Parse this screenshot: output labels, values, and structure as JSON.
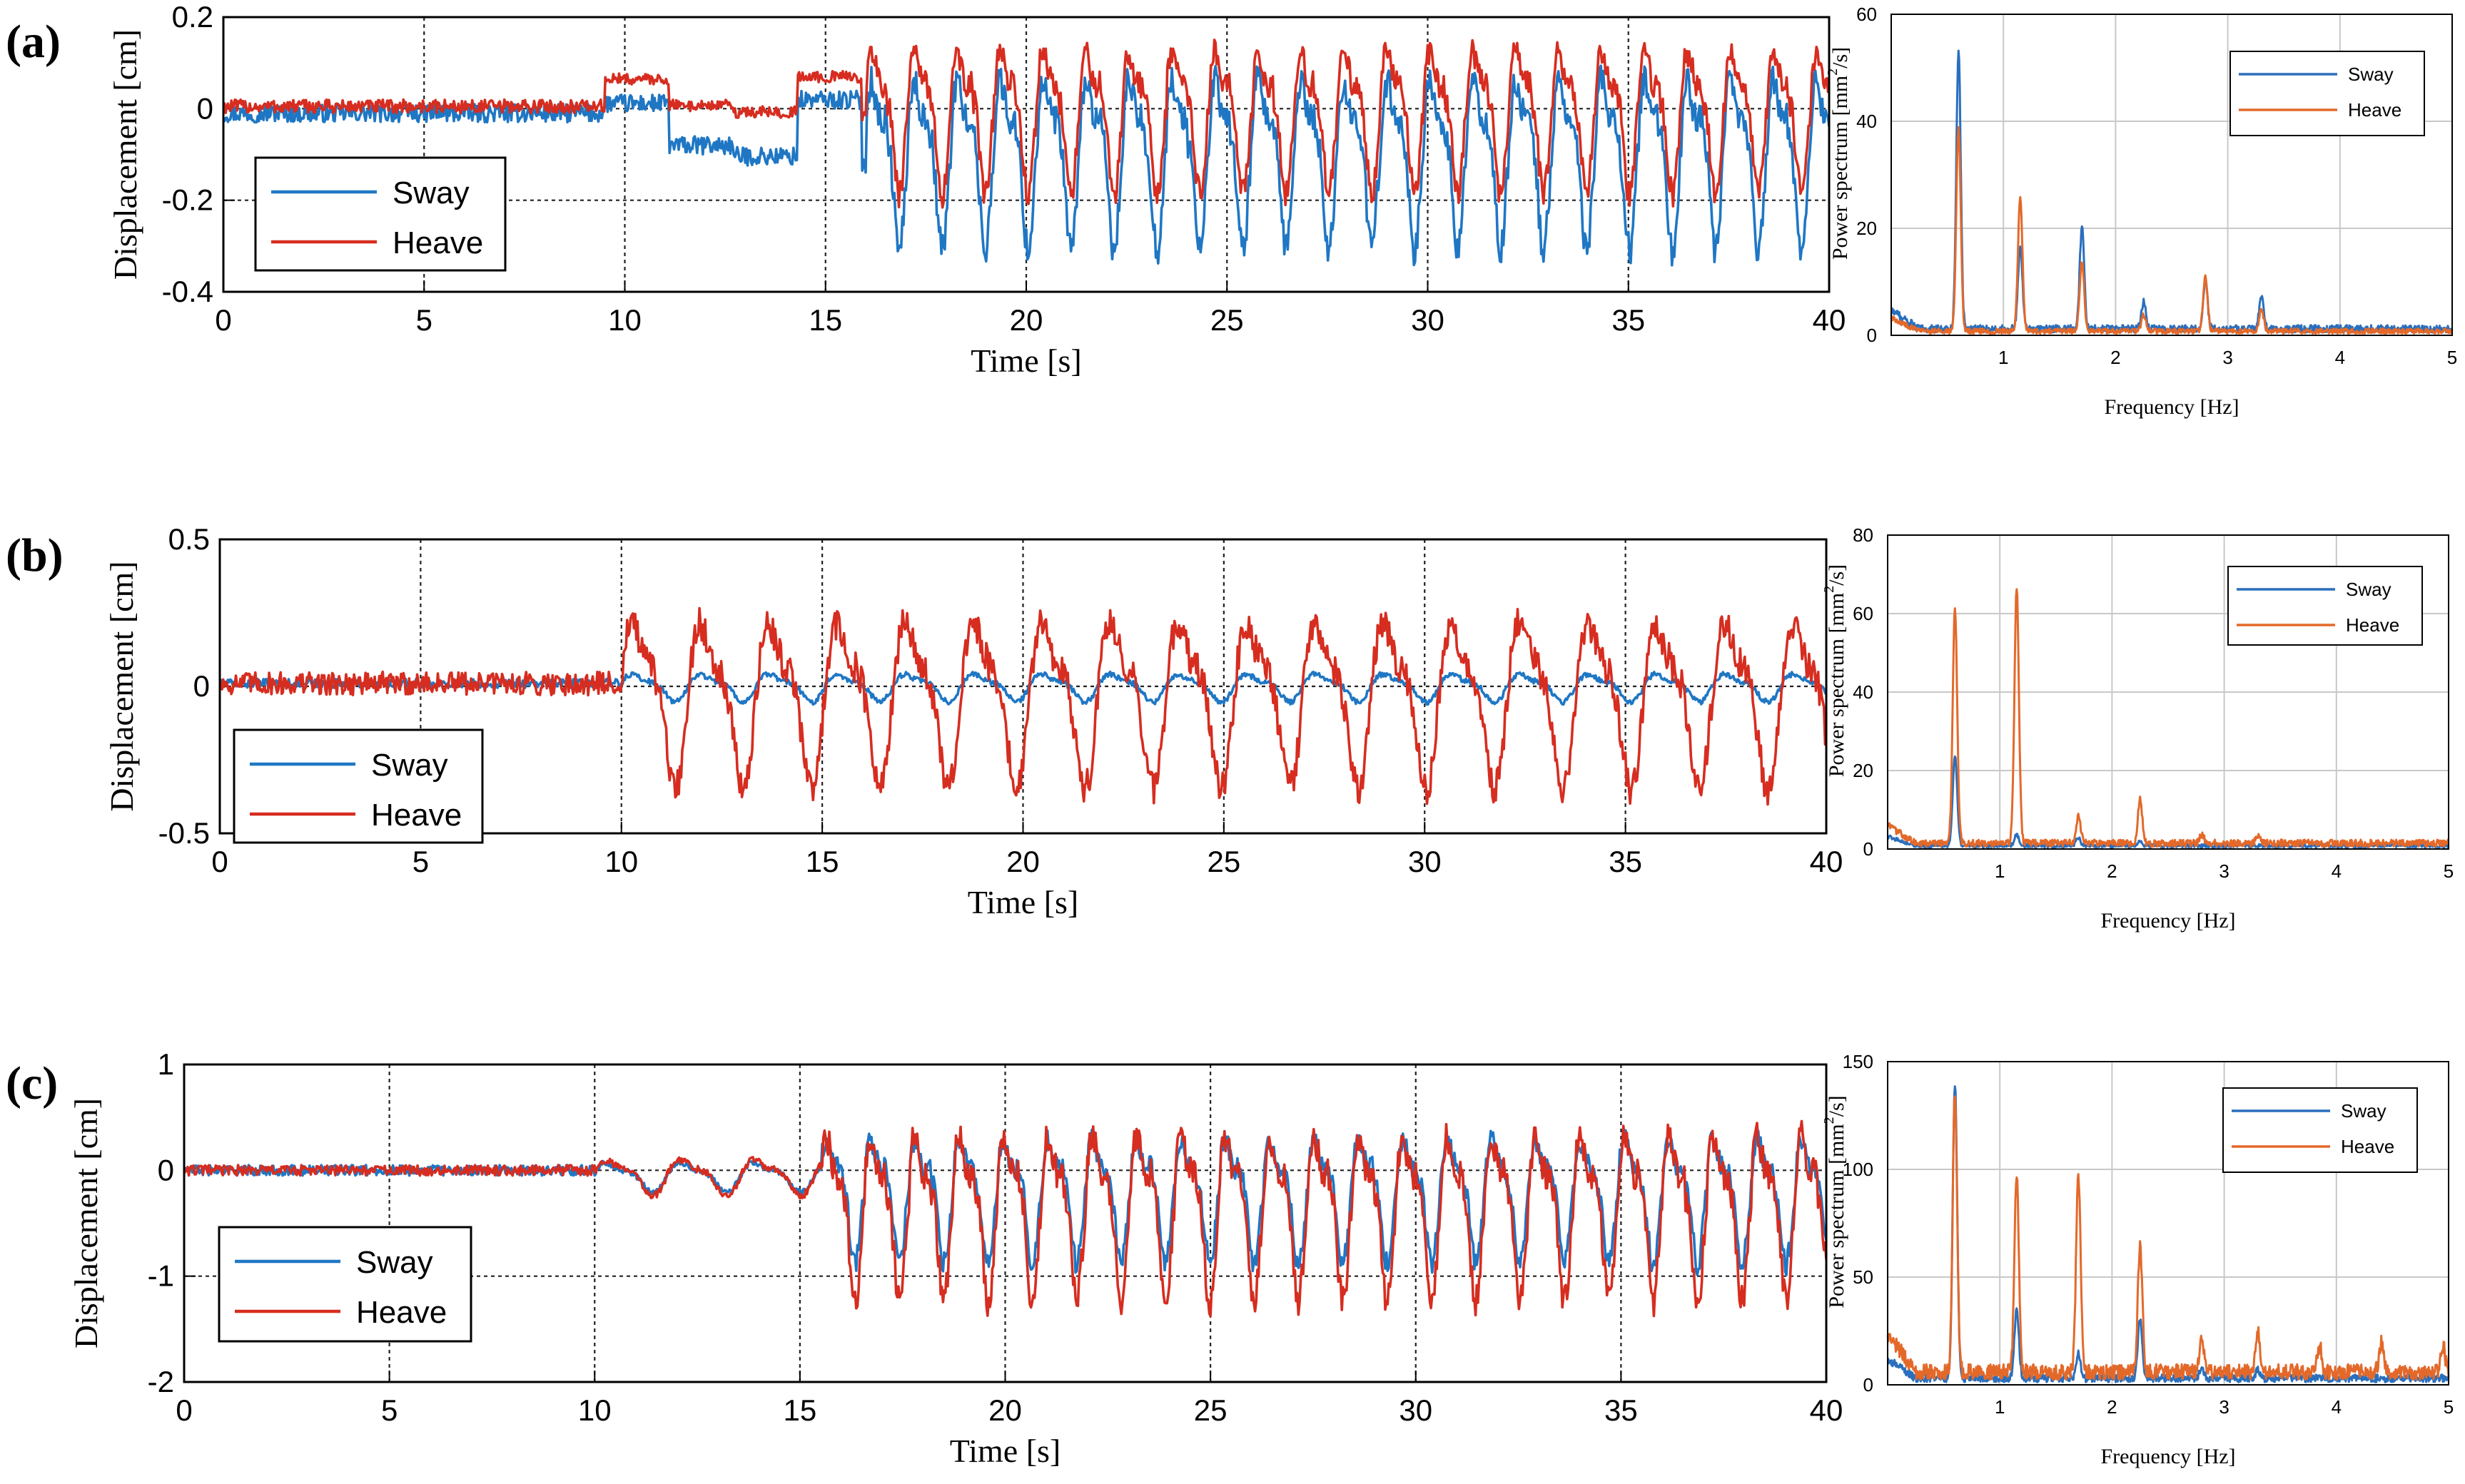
{
  "colors": {
    "sway": "#1f77c4",
    "heave": "#d62d20",
    "sway_spectrum": "#2a6fbd",
    "heave_spectrum": "#e3692a"
  },
  "panels": [
    {
      "label": "(a)",
      "time_chart": {
        "type": "line",
        "xlabel": "Time [s]",
        "ylabel": "Displacement [cm]",
        "xlim": [
          0,
          40
        ],
        "ylim": [
          -0.4,
          0.2
        ],
        "xticks": [
          "0",
          "5",
          "10",
          "15",
          "20",
          "25",
          "30",
          "35",
          "40"
        ],
        "yticks": [
          "-0.4",
          "-0.2",
          "0",
          "0.2"
        ],
        "legend": [
          "Sway",
          "Heave"
        ],
        "series": [
          {
            "name": "Sway",
            "segments": [
              {
                "t0": 0,
                "t1": 9.5,
                "kind": "flat",
                "level": -0.01,
                "amp": 0.02
              },
              {
                "t0": 9.5,
                "t1": 16,
                "kind": "steps",
                "level": -0.06,
                "amp": 0.08,
                "period": 1.6
              },
              {
                "t0": 16,
                "t1": 40,
                "kind": "osc",
                "level": -0.11,
                "amp": 0.19,
                "period": 1.07,
                "sharp": 1
              }
            ]
          },
          {
            "name": "Heave",
            "segments": [
              {
                "t0": 0,
                "t1": 9.5,
                "kind": "flat",
                "level": 0.005,
                "amp": 0.015
              },
              {
                "t0": 9.5,
                "t1": 16,
                "kind": "steps",
                "level": 0.02,
                "amp": 0.05,
                "period": 1.6
              },
              {
                "t0": 16,
                "t1": 40,
                "kind": "osc",
                "level": -0.02,
                "amp": 0.16,
                "period": 1.07,
                "sharp": 1
              }
            ]
          }
        ]
      },
      "spectrum_chart": {
        "type": "line",
        "xlabel": "Frequency [Hz]",
        "ylabel": "Power spectrum [mm",
        "ylabel_sup": "2",
        "ylabel_tail": "/s]",
        "xlim": [
          0,
          5
        ],
        "ylim": [
          0,
          60
        ],
        "xticks": [
          "1",
          "2",
          "3",
          "4",
          "5"
        ],
        "yticks": [
          "0",
          "20",
          "40",
          "60"
        ],
        "legend": [
          "Sway",
          "Heave"
        ],
        "series": [
          {
            "name": "Sway",
            "peaks": [
              [
                0.6,
                52
              ],
              [
                1.15,
                15
              ],
              [
                1.7,
                19
              ],
              [
                2.25,
                5
              ],
              [
                2.8,
                9
              ],
              [
                3.3,
                6
              ]
            ],
            "floor": 1.2
          },
          {
            "name": "Heave",
            "peaks": [
              [
                0.6,
                38
              ],
              [
                1.15,
                25
              ],
              [
                1.7,
                13
              ],
              [
                2.25,
                3
              ],
              [
                2.8,
                10
              ],
              [
                3.3,
                4
              ]
            ],
            "floor": 0.8
          }
        ]
      }
    },
    {
      "label": "(b)",
      "time_chart": {
        "type": "line",
        "xlabel": "Time [s]",
        "ylabel": "Displacement [cm]",
        "xlim": [
          0,
          40
        ],
        "ylim": [
          -0.5,
          0.5
        ],
        "xticks": [
          "0",
          "5",
          "10",
          "15",
          "20",
          "25",
          "30",
          "35",
          "40"
        ],
        "yticks": [
          "-0.5",
          "0",
          "0.5"
        ],
        "legend": [
          "Sway",
          "Heave"
        ],
        "series": [
          {
            "name": "Sway",
            "segments": [
              {
                "t0": 0,
                "t1": 10,
                "kind": "flat",
                "level": 0.01,
                "amp": 0.015
              },
              {
                "t0": 10,
                "t1": 40,
                "kind": "osc",
                "level": 0.0,
                "amp": 0.05,
                "period": 1.7,
                "sharp": 0
              }
            ]
          },
          {
            "name": "Heave",
            "segments": [
              {
                "t0": 0,
                "t1": 10,
                "kind": "flat",
                "level": 0.01,
                "amp": 0.04
              },
              {
                "t0": 10,
                "t1": 40,
                "kind": "osc",
                "level": -0.03,
                "amp": 0.3,
                "period": 1.7,
                "sharp": 0
              }
            ]
          }
        ]
      },
      "spectrum_chart": {
        "type": "line",
        "xlabel": "Frequency [Hz]",
        "ylabel": "Power spectrum [mm",
        "ylabel_sup": "2",
        "ylabel_tail": "/s]",
        "xlim": [
          0,
          5
        ],
        "ylim": [
          0,
          80
        ],
        "xticks": [
          "1",
          "2",
          "3",
          "4",
          "5"
        ],
        "yticks": [
          "0",
          "20",
          "40",
          "60",
          "80"
        ],
        "legend": [
          "Sway",
          "Heave"
        ],
        "series": [
          {
            "name": "Sway",
            "peaks": [
              [
                0.6,
                23
              ],
              [
                1.15,
                3
              ],
              [
                1.7,
                2
              ],
              [
                2.25,
                1
              ]
            ],
            "floor": 0.8
          },
          {
            "name": "Heave",
            "peaks": [
              [
                0.6,
                60
              ],
              [
                1.15,
                65
              ],
              [
                1.7,
                7
              ],
              [
                2.25,
                11
              ],
              [
                2.8,
                2
              ],
              [
                3.3,
                1.5
              ]
            ],
            "floor": 1.5
          }
        ]
      }
    },
    {
      "label": "(c)",
      "time_chart": {
        "type": "line",
        "xlabel": "Time [s]",
        "ylabel": "Displacement [cm]",
        "xlim": [
          0,
          40
        ],
        "ylim": [
          -2,
          1
        ],
        "xticks": [
          "0",
          "5",
          "10",
          "15",
          "20",
          "25",
          "30",
          "35",
          "40"
        ],
        "yticks": [
          "-2",
          "-1",
          "0",
          "1"
        ],
        "legend": [
          "Sway",
          "Heave"
        ],
        "series": [
          {
            "name": "Sway",
            "segments": [
              {
                "t0": 0,
                "t1": 10,
                "kind": "flat",
                "level": 0.0,
                "amp": 0.05
              },
              {
                "t0": 10,
                "t1": 15.5,
                "kind": "osc",
                "level": -0.05,
                "amp": 0.15,
                "period": 1.8,
                "sharp": 0
              },
              {
                "t0": 15.5,
                "t1": 40,
                "kind": "osc",
                "level": -0.25,
                "amp": 0.6,
                "period": 1.08,
                "sharp": 1
              }
            ]
          },
          {
            "name": "Heave",
            "segments": [
              {
                "t0": 0,
                "t1": 10,
                "kind": "flat",
                "level": 0.0,
                "amp": 0.05
              },
              {
                "t0": 10,
                "t1": 15.5,
                "kind": "osc",
                "level": -0.05,
                "amp": 0.18,
                "period": 1.8,
                "sharp": 0
              },
              {
                "t0": 15.5,
                "t1": 40,
                "kind": "osc",
                "level": -0.4,
                "amp": 0.8,
                "period": 1.08,
                "sharp": 1
              }
            ]
          }
        ]
      },
      "spectrum_chart": {
        "type": "line",
        "xlabel": "Frequency [Hz]",
        "ylabel": "Power spectrum [mm",
        "ylabel_sup": "2",
        "ylabel_tail": "/s]",
        "xlim": [
          0,
          5
        ],
        "ylim": [
          0,
          150
        ],
        "xticks": [
          "1",
          "2",
          "3",
          "4",
          "5"
        ],
        "yticks": [
          "0",
          "50",
          "100",
          "150"
        ],
        "legend": [
          "Sway",
          "Heave"
        ],
        "series": [
          {
            "name": "Sway",
            "peaks": [
              [
                0.6,
                137
              ],
              [
                1.15,
                33
              ],
              [
                1.7,
                12
              ],
              [
                2.25,
                28
              ],
              [
                2.8,
                5
              ],
              [
                3.3,
                4
              ]
            ],
            "floor": 3
          },
          {
            "name": "Heave",
            "peaks": [
              [
                0.6,
                130
              ],
              [
                1.15,
                93
              ],
              [
                1.7,
                93
              ],
              [
                2.25,
                60
              ],
              [
                2.8,
                17
              ],
              [
                3.3,
                20
              ],
              [
                3.85,
                12
              ],
              [
                4.4,
                14
              ],
              [
                4.95,
                12
              ]
            ],
            "floor": 6
          }
        ]
      }
    }
  ]
}
